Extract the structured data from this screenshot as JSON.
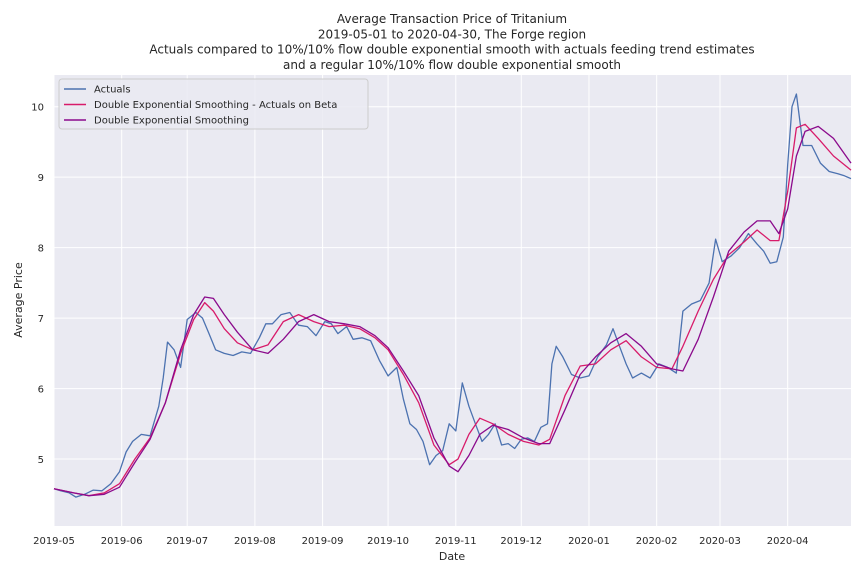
{
  "chart_data": {
    "type": "line",
    "title": [
      "Average Transaction Price of Tritanium",
      "2019-05-01 to 2020-04-30, The Forge region",
      "Actuals compared to 10%/10% flow double exponential smooth with actuals feeding trend estimates",
      "and a regular 10%/10% flow double exponential smooth"
    ],
    "xlabel": "Date",
    "ylabel": "Average Price",
    "xlim": [
      "2019-05-01",
      "2020-04-30"
    ],
    "ylim": [
      4.05,
      10.45
    ],
    "x_ticks": [
      "2019-05",
      "2019-06",
      "2019-07",
      "2019-08",
      "2019-09",
      "2019-10",
      "2019-11",
      "2019-12",
      "2020-01",
      "2020-02",
      "2020-03",
      "2020-04"
    ],
    "y_ticks": [
      5,
      6,
      7,
      8,
      9,
      10
    ],
    "grid": true,
    "legend_position": "top-left",
    "background": "#eaeaf2",
    "series": [
      {
        "name": "Actuals",
        "color": "#4c72b0",
        "points": [
          [
            "2019-05-01",
            4.58
          ],
          [
            "2019-05-04",
            4.55
          ],
          [
            "2019-05-08",
            4.52
          ],
          [
            "2019-05-11",
            4.46
          ],
          [
            "2019-05-15",
            4.5
          ],
          [
            "2019-05-19",
            4.56
          ],
          [
            "2019-05-23",
            4.55
          ],
          [
            "2019-05-27",
            4.65
          ],
          [
            "2019-05-31",
            4.82
          ],
          [
            "2019-06-03",
            5.1
          ],
          [
            "2019-06-06",
            5.25
          ],
          [
            "2019-06-10",
            5.35
          ],
          [
            "2019-06-14",
            5.33
          ],
          [
            "2019-06-18",
            5.75
          ],
          [
            "2019-06-20",
            6.15
          ],
          [
            "2019-06-22",
            6.66
          ],
          [
            "2019-06-25",
            6.55
          ],
          [
            "2019-06-28",
            6.3
          ],
          [
            "2019-07-01",
            6.98
          ],
          [
            "2019-07-05",
            7.08
          ],
          [
            "2019-07-08",
            7.0
          ],
          [
            "2019-07-11",
            6.78
          ],
          [
            "2019-07-14",
            6.55
          ],
          [
            "2019-07-18",
            6.5
          ],
          [
            "2019-07-22",
            6.47
          ],
          [
            "2019-07-26",
            6.52
          ],
          [
            "2019-07-30",
            6.5
          ],
          [
            "2019-08-03",
            6.72
          ],
          [
            "2019-08-06",
            6.92
          ],
          [
            "2019-08-09",
            6.92
          ],
          [
            "2019-08-13",
            7.05
          ],
          [
            "2019-08-17",
            7.08
          ],
          [
            "2019-08-21",
            6.9
          ],
          [
            "2019-08-25",
            6.88
          ],
          [
            "2019-08-29",
            6.75
          ],
          [
            "2019-09-02",
            6.95
          ],
          [
            "2019-09-05",
            6.92
          ],
          [
            "2019-09-08",
            6.78
          ],
          [
            "2019-09-12",
            6.88
          ],
          [
            "2019-09-15",
            6.7
          ],
          [
            "2019-09-19",
            6.72
          ],
          [
            "2019-09-23",
            6.68
          ],
          [
            "2019-09-27",
            6.4
          ],
          [
            "2019-10-01",
            6.18
          ],
          [
            "2019-10-05",
            6.3
          ],
          [
            "2019-10-08",
            5.85
          ],
          [
            "2019-10-11",
            5.5
          ],
          [
            "2019-10-14",
            5.42
          ],
          [
            "2019-10-17",
            5.25
          ],
          [
            "2019-10-20",
            4.92
          ],
          [
            "2019-10-23",
            5.05
          ],
          [
            "2019-10-26",
            5.12
          ],
          [
            "2019-10-29",
            5.5
          ],
          [
            "2019-11-01",
            5.4
          ],
          [
            "2019-11-04",
            6.08
          ],
          [
            "2019-11-07",
            5.75
          ],
          [
            "2019-11-10",
            5.5
          ],
          [
            "2019-11-13",
            5.25
          ],
          [
            "2019-11-16",
            5.35
          ],
          [
            "2019-11-19",
            5.5
          ],
          [
            "2019-11-22",
            5.2
          ],
          [
            "2019-11-25",
            5.22
          ],
          [
            "2019-11-28",
            5.15
          ],
          [
            "2019-12-01",
            5.28
          ],
          [
            "2019-12-04",
            5.3
          ],
          [
            "2019-12-07",
            5.25
          ],
          [
            "2019-12-10",
            5.45
          ],
          [
            "2019-12-13",
            5.5
          ],
          [
            "2019-12-15",
            6.35
          ],
          [
            "2019-12-17",
            6.6
          ],
          [
            "2019-12-20",
            6.45
          ],
          [
            "2019-12-24",
            6.2
          ],
          [
            "2019-12-28",
            6.15
          ],
          [
            "2020-01-01",
            6.18
          ],
          [
            "2020-01-05",
            6.45
          ],
          [
            "2020-01-09",
            6.62
          ],
          [
            "2020-01-12",
            6.85
          ],
          [
            "2020-01-15",
            6.6
          ],
          [
            "2020-01-18",
            6.35
          ],
          [
            "2020-01-21",
            6.15
          ],
          [
            "2020-01-25",
            6.22
          ],
          [
            "2020-01-29",
            6.15
          ],
          [
            "2020-02-02",
            6.35
          ],
          [
            "2020-02-06",
            6.3
          ],
          [
            "2020-02-10",
            6.22
          ],
          [
            "2020-02-13",
            7.1
          ],
          [
            "2020-02-17",
            7.2
          ],
          [
            "2020-02-21",
            7.25
          ],
          [
            "2020-02-25",
            7.5
          ],
          [
            "2020-02-28",
            8.12
          ],
          [
            "2020-03-02",
            7.8
          ],
          [
            "2020-03-06",
            7.88
          ],
          [
            "2020-03-10",
            8.0
          ],
          [
            "2020-03-14",
            8.2
          ],
          [
            "2020-03-18",
            8.05
          ],
          [
            "2020-03-21",
            7.95
          ],
          [
            "2020-03-24",
            7.78
          ],
          [
            "2020-03-27",
            7.8
          ],
          [
            "2020-03-30",
            8.15
          ],
          [
            "2020-04-01",
            9.18
          ],
          [
            "2020-04-03",
            10.0
          ],
          [
            "2020-04-05",
            10.18
          ],
          [
            "2020-04-08",
            9.45
          ],
          [
            "2020-04-12",
            9.45
          ],
          [
            "2020-04-16",
            9.2
          ],
          [
            "2020-04-20",
            9.08
          ],
          [
            "2020-04-24",
            9.05
          ],
          [
            "2020-04-27",
            9.02
          ],
          [
            "2020-04-30",
            8.98
          ]
        ]
      },
      {
        "name": "Double Exponential Smoothing - Actuals on Beta",
        "color": "#d81b6a",
        "points": [
          [
            "2019-05-01",
            4.58
          ],
          [
            "2019-05-10",
            4.52
          ],
          [
            "2019-05-17",
            4.48
          ],
          [
            "2019-05-24",
            4.52
          ],
          [
            "2019-05-31",
            4.65
          ],
          [
            "2019-06-07",
            5.0
          ],
          [
            "2019-06-14",
            5.3
          ],
          [
            "2019-06-21",
            5.8
          ],
          [
            "2019-06-28",
            6.5
          ],
          [
            "2019-07-04",
            6.98
          ],
          [
            "2019-07-09",
            7.22
          ],
          [
            "2019-07-13",
            7.1
          ],
          [
            "2019-07-18",
            6.85
          ],
          [
            "2019-07-24",
            6.65
          ],
          [
            "2019-07-31",
            6.55
          ],
          [
            "2019-08-07",
            6.62
          ],
          [
            "2019-08-14",
            6.95
          ],
          [
            "2019-08-21",
            7.05
          ],
          [
            "2019-08-28",
            6.95
          ],
          [
            "2019-09-04",
            6.88
          ],
          [
            "2019-09-11",
            6.9
          ],
          [
            "2019-09-18",
            6.85
          ],
          [
            "2019-09-25",
            6.72
          ],
          [
            "2019-10-01",
            6.55
          ],
          [
            "2019-10-08",
            6.2
          ],
          [
            "2019-10-15",
            5.8
          ],
          [
            "2019-10-22",
            5.2
          ],
          [
            "2019-10-29",
            4.92
          ],
          [
            "2019-11-02",
            5.0
          ],
          [
            "2019-11-07",
            5.35
          ],
          [
            "2019-11-12",
            5.58
          ],
          [
            "2019-11-18",
            5.5
          ],
          [
            "2019-11-25",
            5.35
          ],
          [
            "2019-12-02",
            5.25
          ],
          [
            "2019-12-09",
            5.2
          ],
          [
            "2019-12-14",
            5.28
          ],
          [
            "2019-12-21",
            5.9
          ],
          [
            "2019-12-28",
            6.32
          ],
          [
            "2020-01-04",
            6.35
          ],
          [
            "2020-01-11",
            6.55
          ],
          [
            "2020-01-18",
            6.68
          ],
          [
            "2020-01-25",
            6.45
          ],
          [
            "2020-02-01",
            6.3
          ],
          [
            "2020-02-08",
            6.28
          ],
          [
            "2020-02-13",
            6.6
          ],
          [
            "2020-02-20",
            7.1
          ],
          [
            "2020-02-27",
            7.55
          ],
          [
            "2020-03-05",
            7.9
          ],
          [
            "2020-03-12",
            8.08
          ],
          [
            "2020-03-18",
            8.25
          ],
          [
            "2020-03-24",
            8.1
          ],
          [
            "2020-03-28",
            8.1
          ],
          [
            "2020-04-01",
            8.8
          ],
          [
            "2020-04-05",
            9.7
          ],
          [
            "2020-04-09",
            9.75
          ],
          [
            "2020-04-15",
            9.55
          ],
          [
            "2020-04-22",
            9.3
          ],
          [
            "2020-04-30",
            9.1
          ]
        ]
      },
      {
        "name": "Double Exponential Smoothing",
        "color": "#8b0a8c",
        "points": [
          [
            "2019-05-01",
            4.58
          ],
          [
            "2019-05-10",
            4.52
          ],
          [
            "2019-05-17",
            4.48
          ],
          [
            "2019-05-24",
            4.5
          ],
          [
            "2019-05-31",
            4.6
          ],
          [
            "2019-06-07",
            4.95
          ],
          [
            "2019-06-14",
            5.28
          ],
          [
            "2019-06-21",
            5.8
          ],
          [
            "2019-06-28",
            6.55
          ],
          [
            "2019-07-04",
            7.05
          ],
          [
            "2019-07-09",
            7.3
          ],
          [
            "2019-07-13",
            7.28
          ],
          [
            "2019-07-18",
            7.05
          ],
          [
            "2019-07-24",
            6.8
          ],
          [
            "2019-07-31",
            6.55
          ],
          [
            "2019-08-07",
            6.5
          ],
          [
            "2019-08-14",
            6.7
          ],
          [
            "2019-08-21",
            6.95
          ],
          [
            "2019-08-28",
            7.05
          ],
          [
            "2019-09-04",
            6.95
          ],
          [
            "2019-09-11",
            6.92
          ],
          [
            "2019-09-18",
            6.88
          ],
          [
            "2019-09-25",
            6.75
          ],
          [
            "2019-10-01",
            6.58
          ],
          [
            "2019-10-08",
            6.25
          ],
          [
            "2019-10-15",
            5.9
          ],
          [
            "2019-10-22",
            5.3
          ],
          [
            "2019-10-29",
            4.9
          ],
          [
            "2019-11-02",
            4.82
          ],
          [
            "2019-11-07",
            5.05
          ],
          [
            "2019-11-12",
            5.35
          ],
          [
            "2019-11-18",
            5.48
          ],
          [
            "2019-11-25",
            5.42
          ],
          [
            "2019-12-02",
            5.3
          ],
          [
            "2019-12-09",
            5.22
          ],
          [
            "2019-12-14",
            5.22
          ],
          [
            "2019-12-21",
            5.7
          ],
          [
            "2019-12-28",
            6.2
          ],
          [
            "2020-01-04",
            6.45
          ],
          [
            "2020-01-11",
            6.65
          ],
          [
            "2020-01-18",
            6.78
          ],
          [
            "2020-01-25",
            6.6
          ],
          [
            "2020-02-01",
            6.35
          ],
          [
            "2020-02-08",
            6.28
          ],
          [
            "2020-02-13",
            6.25
          ],
          [
            "2020-02-20",
            6.7
          ],
          [
            "2020-02-27",
            7.3
          ],
          [
            "2020-03-05",
            7.95
          ],
          [
            "2020-03-12",
            8.22
          ],
          [
            "2020-03-18",
            8.38
          ],
          [
            "2020-03-24",
            8.38
          ],
          [
            "2020-03-28",
            8.2
          ],
          [
            "2020-04-01",
            8.55
          ],
          [
            "2020-04-05",
            9.3
          ],
          [
            "2020-04-09",
            9.65
          ],
          [
            "2020-04-15",
            9.72
          ],
          [
            "2020-04-22",
            9.55
          ],
          [
            "2020-04-30",
            9.2
          ]
        ]
      }
    ]
  }
}
